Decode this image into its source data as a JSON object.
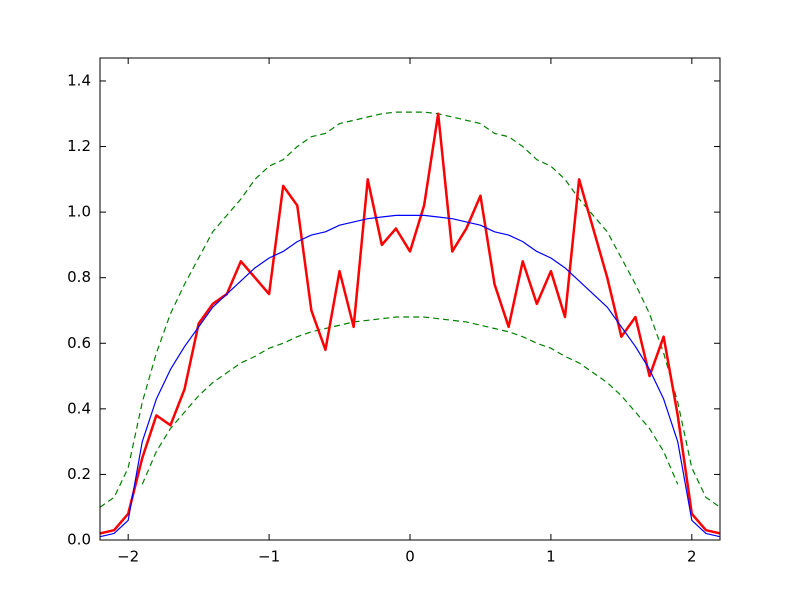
{
  "chart_data": {
    "type": "line",
    "x": [
      -2.2,
      -2.1,
      -2.0,
      -1.9,
      -1.8,
      -1.7,
      -1.6,
      -1.5,
      -1.4,
      -1.3,
      -1.2,
      -1.1,
      -1.0,
      -0.9,
      -0.8,
      -0.7,
      -0.6,
      -0.5,
      -0.4,
      -0.3,
      -0.2,
      -0.1,
      0,
      0.1,
      0.2,
      0.3,
      0.4,
      0.5,
      0.6,
      0.7,
      0.8,
      0.9,
      1.0,
      1.1,
      1.2,
      1.3,
      1.4,
      1.5,
      1.6,
      1.7,
      1.8,
      1.9,
      2.0,
      2.1,
      2.2
    ],
    "series": [
      {
        "color": "#008000",
        "dashed": true,
        "width": 1.2,
        "values": [
          0.1,
          0.13,
          0.22,
          0.42,
          0.57,
          0.69,
          0.78,
          0.86,
          0.94,
          0.99,
          1.04,
          1.1,
          1.14,
          1.16,
          1.2,
          1.23,
          1.24,
          1.27,
          1.28,
          1.29,
          1.3,
          1.305,
          1.305,
          1.305,
          1.3,
          1.29,
          1.28,
          1.27,
          1.24,
          1.23,
          1.2,
          1.16,
          1.14,
          1.1,
          1.04,
          0.99,
          0.94,
          0.86,
          0.78,
          0.69,
          0.57,
          0.42,
          0.22,
          0.13,
          0.1
        ]
      },
      {
        "color": "#008000",
        "dashed": true,
        "width": 1.2,
        "values": [
          null,
          null,
          null,
          0.17,
          0.27,
          0.34,
          0.39,
          0.44,
          0.48,
          0.51,
          0.54,
          0.56,
          0.585,
          0.6,
          0.62,
          0.635,
          0.645,
          0.655,
          0.665,
          0.67,
          0.675,
          0.68,
          0.68,
          0.68,
          0.675,
          0.67,
          0.665,
          0.655,
          0.645,
          0.635,
          0.62,
          0.6,
          0.585,
          0.56,
          0.54,
          0.51,
          0.48,
          0.44,
          0.39,
          0.34,
          0.27,
          0.17,
          null,
          null,
          null
        ]
      },
      {
        "color": "#ff0000",
        "dashed": false,
        "width": 2.5,
        "values": [
          0.02,
          0.03,
          0.08,
          0.25,
          0.38,
          0.35,
          0.46,
          0.66,
          0.72,
          0.75,
          0.85,
          0.8,
          0.75,
          1.08,
          1.02,
          0.7,
          0.58,
          0.82,
          0.65,
          1.1,
          0.9,
          0.95,
          0.88,
          1.02,
          1.3,
          0.88,
          0.95,
          1.05,
          0.78,
          0.65,
          0.85,
          0.72,
          0.82,
          0.68,
          1.1,
          0.95,
          0.8,
          0.62,
          0.68,
          0.5,
          0.62,
          0.38,
          0.08,
          0.03,
          0.02
        ]
      },
      {
        "color": "#0000ff",
        "dashed": false,
        "width": 1.2,
        "values": [
          0.01,
          0.02,
          0.06,
          0.3,
          0.43,
          0.52,
          0.59,
          0.65,
          0.71,
          0.75,
          0.79,
          0.83,
          0.86,
          0.88,
          0.91,
          0.93,
          0.94,
          0.96,
          0.97,
          0.98,
          0.985,
          0.99,
          0.99,
          0.99,
          0.985,
          0.98,
          0.97,
          0.96,
          0.94,
          0.93,
          0.91,
          0.88,
          0.86,
          0.83,
          0.79,
          0.75,
          0.71,
          0.65,
          0.59,
          0.52,
          0.43,
          0.3,
          0.06,
          0.02,
          0.01
        ]
      }
    ],
    "xlim": [
      -2.2,
      2.2
    ],
    "ylim": [
      0,
      1.47
    ],
    "xticks": [
      {
        "value": -2,
        "label": "−2"
      },
      {
        "value": -1,
        "label": "−1"
      },
      0,
      1,
      2
    ],
    "yticks": [
      {
        "value": 0,
        "label": "0.0"
      },
      0.2,
      0.4,
      0.6,
      0.8,
      {
        "value": 1,
        "label": "1.0"
      },
      1.2,
      1.4
    ]
  }
}
